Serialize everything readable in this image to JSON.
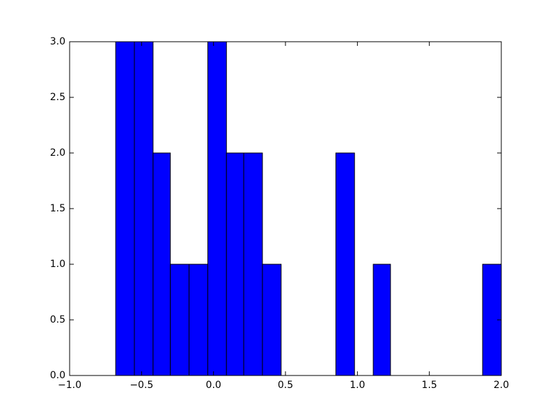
{
  "chart_data": {
    "type": "histogram",
    "bins": [
      -0.68,
      -0.55,
      -0.42,
      -0.3,
      -0.17,
      -0.04,
      0.09,
      0.21,
      0.34,
      0.47,
      0.6,
      0.72,
      0.85,
      0.98,
      1.11,
      1.23,
      1.36,
      1.49,
      1.62,
      1.74,
      1.87,
      2.0
    ],
    "values": [
      3,
      3,
      2,
      1,
      1,
      3,
      2,
      2,
      1,
      0,
      0,
      0,
      2,
      0,
      1,
      0,
      0,
      0,
      0,
      0,
      1
    ],
    "color": "#0000ff",
    "edgecolor": "#000000",
    "xlim": [
      -1.0,
      2.0
    ],
    "xticks": [
      {
        "value": -1.0,
        "label": "−1.0"
      },
      {
        "value": -0.5,
        "label": "−0.5"
      },
      {
        "value": 0.0,
        "label": "0.0"
      },
      {
        "value": 0.5,
        "label": "0.5"
      },
      {
        "value": 1.0,
        "label": "1.0"
      },
      {
        "value": 1.5,
        "label": "1.5"
      },
      {
        "value": 2.0,
        "label": "2.0"
      }
    ],
    "ylim": [
      0,
      3.0
    ],
    "yticks": [
      {
        "value": 0,
        "label": "0.0"
      },
      {
        "value": 0.5,
        "label": "0.5"
      },
      {
        "value": 1.0,
        "label": "1.0"
      },
      {
        "value": 1.5,
        "label": "1.5"
      },
      {
        "value": 2.0,
        "label": "2.0"
      },
      {
        "value": 2.5,
        "label": "2.5"
      },
      {
        "value": 3.0,
        "label": "3.0"
      }
    ],
    "grid": false
  }
}
